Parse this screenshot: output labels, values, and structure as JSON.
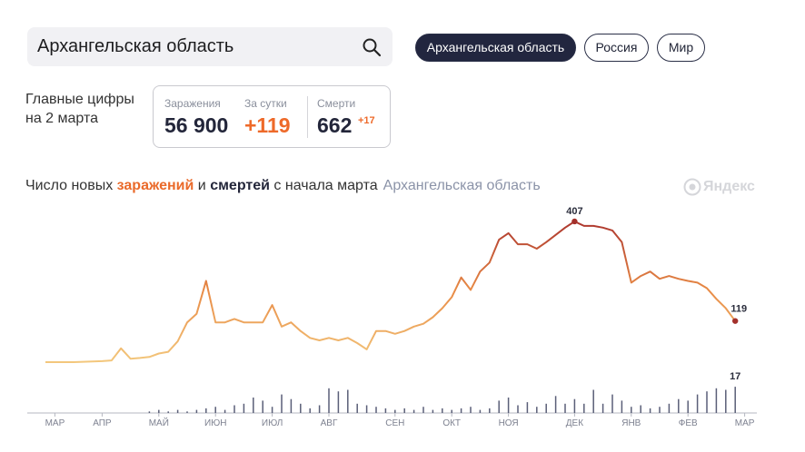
{
  "search": {
    "query": "Архангельская область"
  },
  "tabs": [
    "Архангельская область",
    "Россия",
    "Мир"
  ],
  "summary": {
    "title_lines": [
      "Главные цифры",
      "на 2 марта"
    ],
    "cases_label": "Заражения",
    "cases": "56 900",
    "daily_label": "За сутки",
    "daily": "+119",
    "deaths_label": "Смерти",
    "deaths": "662",
    "deaths_daily": "+17"
  },
  "chart_heading": {
    "parts": [
      "Число новых",
      "заражений",
      "и",
      "смертей",
      "с начала марта"
    ],
    "region": "Архангельская область"
  },
  "brand": "Яндекс",
  "chart_data": {
    "type": "line",
    "categories": [
      null,
      "МАР",
      null,
      null,
      null,
      null,
      "АПР",
      null,
      null,
      null,
      null,
      null,
      "МАЙ",
      null,
      null,
      null,
      null,
      null,
      "ИЮН",
      null,
      null,
      null,
      null,
      null,
      "ИЮЛ",
      null,
      null,
      null,
      null,
      null,
      "АВГ",
      null,
      null,
      null,
      null,
      null,
      null,
      "СЕН",
      null,
      null,
      null,
      null,
      null,
      "ОКТ",
      null,
      null,
      null,
      null,
      null,
      "НОЯ",
      null,
      null,
      null,
      null,
      null,
      null,
      "ДЕК",
      null,
      null,
      null,
      null,
      null,
      "ЯНВ",
      null,
      null,
      null,
      null,
      null,
      "ФЕВ",
      null,
      null,
      null,
      null,
      null,
      "МАР"
    ],
    "series": [
      {
        "values": [
          0,
          0,
          0,
          0,
          1,
          2,
          3,
          5,
          40,
          10,
          12,
          15,
          25,
          30,
          60,
          115,
          140,
          235,
          115,
          115,
          125,
          115,
          115,
          115,
          165,
          103,
          115,
          90,
          70,
          63,
          70,
          63,
          70,
          55,
          37,
          90,
          90,
          82,
          90,
          103,
          111,
          130,
          156,
          188,
          245,
          209,
          262,
          288,
          354,
          373,
          341,
          341,
          328,
          347,
          368,
          389,
          407,
          394,
          394,
          389,
          381,
          347,
          230,
          249,
          262,
          241,
          249,
          241,
          235,
          230,
          214,
          183,
          156,
          119,
          null
        ],
        "colors": [
          "#f3c77c",
          "#e88a45",
          "#a8302c"
        ]
      },
      {
        "type": "bar",
        "axis": "y2",
        "color": "#5a5f78",
        "values": [
          0,
          0,
          0,
          0,
          0,
          0,
          0,
          0,
          0,
          0,
          0,
          1,
          2,
          1,
          2,
          1,
          2,
          3,
          4,
          2,
          5,
          6,
          10,
          8,
          4,
          12,
          9,
          6,
          3,
          5,
          16,
          14,
          15,
          6,
          5,
          4,
          3,
          2,
          3,
          2,
          4,
          2,
          3,
          2,
          3,
          4,
          2,
          3,
          8,
          10,
          5,
          7,
          4,
          6,
          11,
          6,
          9,
          6,
          15,
          6,
          12,
          8,
          4,
          5,
          3,
          4,
          6,
          9,
          8,
          12,
          14,
          16,
          15,
          17,
          null
        ]
      }
    ],
    "ylim": [
      0,
      420
    ],
    "y2lim": [
      0,
      20
    ],
    "labeled_points": [
      {
        "series": 0,
        "index": 56
      },
      {
        "series": 0,
        "index": 73
      },
      {
        "series": 1,
        "index": 73
      }
    ]
  }
}
